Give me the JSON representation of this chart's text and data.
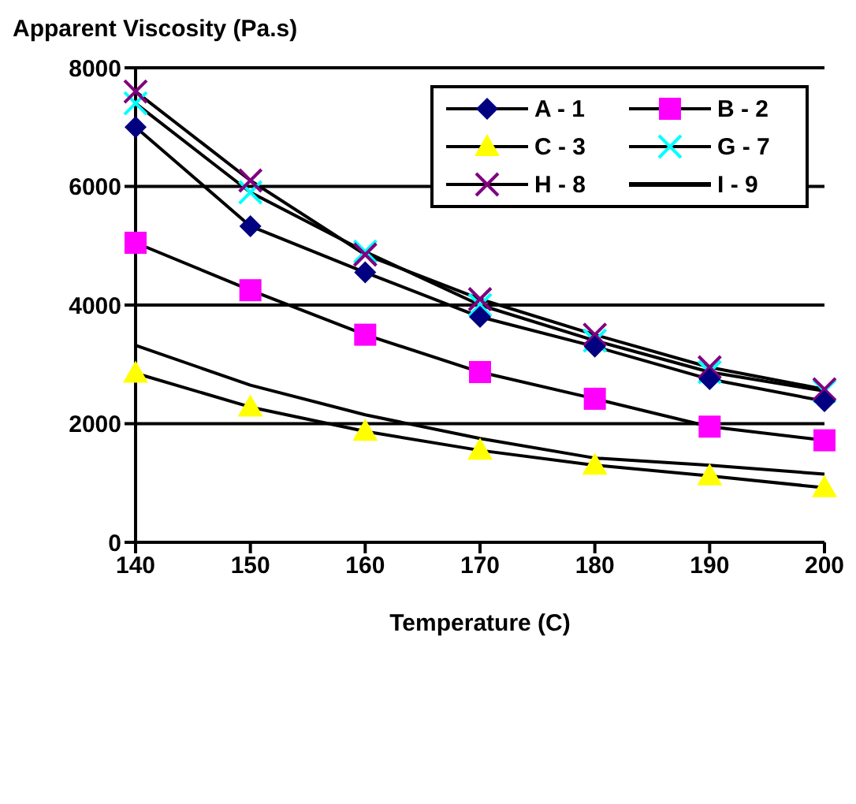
{
  "chart_data": {
    "type": "line",
    "ylabel": "Apparent Viscosity (Pa.s)",
    "xlabel": "Temperature (C)",
    "x": [
      140,
      150,
      160,
      170,
      180,
      190,
      200
    ],
    "xlim": [
      140,
      200
    ],
    "xticks": [
      140,
      150,
      160,
      170,
      180,
      190,
      200
    ],
    "ylim": [
      0,
      8000
    ],
    "yticks": [
      0,
      2000,
      4000,
      6000,
      8000
    ],
    "grid": "y",
    "legend": "top right",
    "series": [
      {
        "name": "A - 1",
        "color": "#000080",
        "marker": "diamond",
        "values": [
          7000,
          5330,
          4550,
          3800,
          3300,
          2750,
          2380
        ]
      },
      {
        "name": "B - 2",
        "color": "#ff00ff",
        "marker": "square",
        "values": [
          5050,
          4250,
          3500,
          2870,
          2420,
          1950,
          1720
        ]
      },
      {
        "name": "C - 3",
        "color": "#ffff00",
        "marker": "triangle",
        "values": [
          2850,
          2280,
          1870,
          1550,
          1300,
          1120,
          920
        ]
      },
      {
        "name": "G - 7",
        "color": "#00ffff",
        "marker": "cross",
        "values": [
          7400,
          5900,
          4900,
          4000,
          3400,
          2870,
          2550
        ]
      },
      {
        "name": "H - 8",
        "color": "#800080",
        "marker": "cross",
        "values": [
          7600,
          6100,
          4850,
          4100,
          3500,
          2950,
          2580
        ]
      },
      {
        "name": "I - 9",
        "color": "#000000",
        "marker": "none",
        "values": [
          3320,
          2650,
          2150,
          1750,
          1420,
          1300,
          1150
        ]
      }
    ]
  }
}
